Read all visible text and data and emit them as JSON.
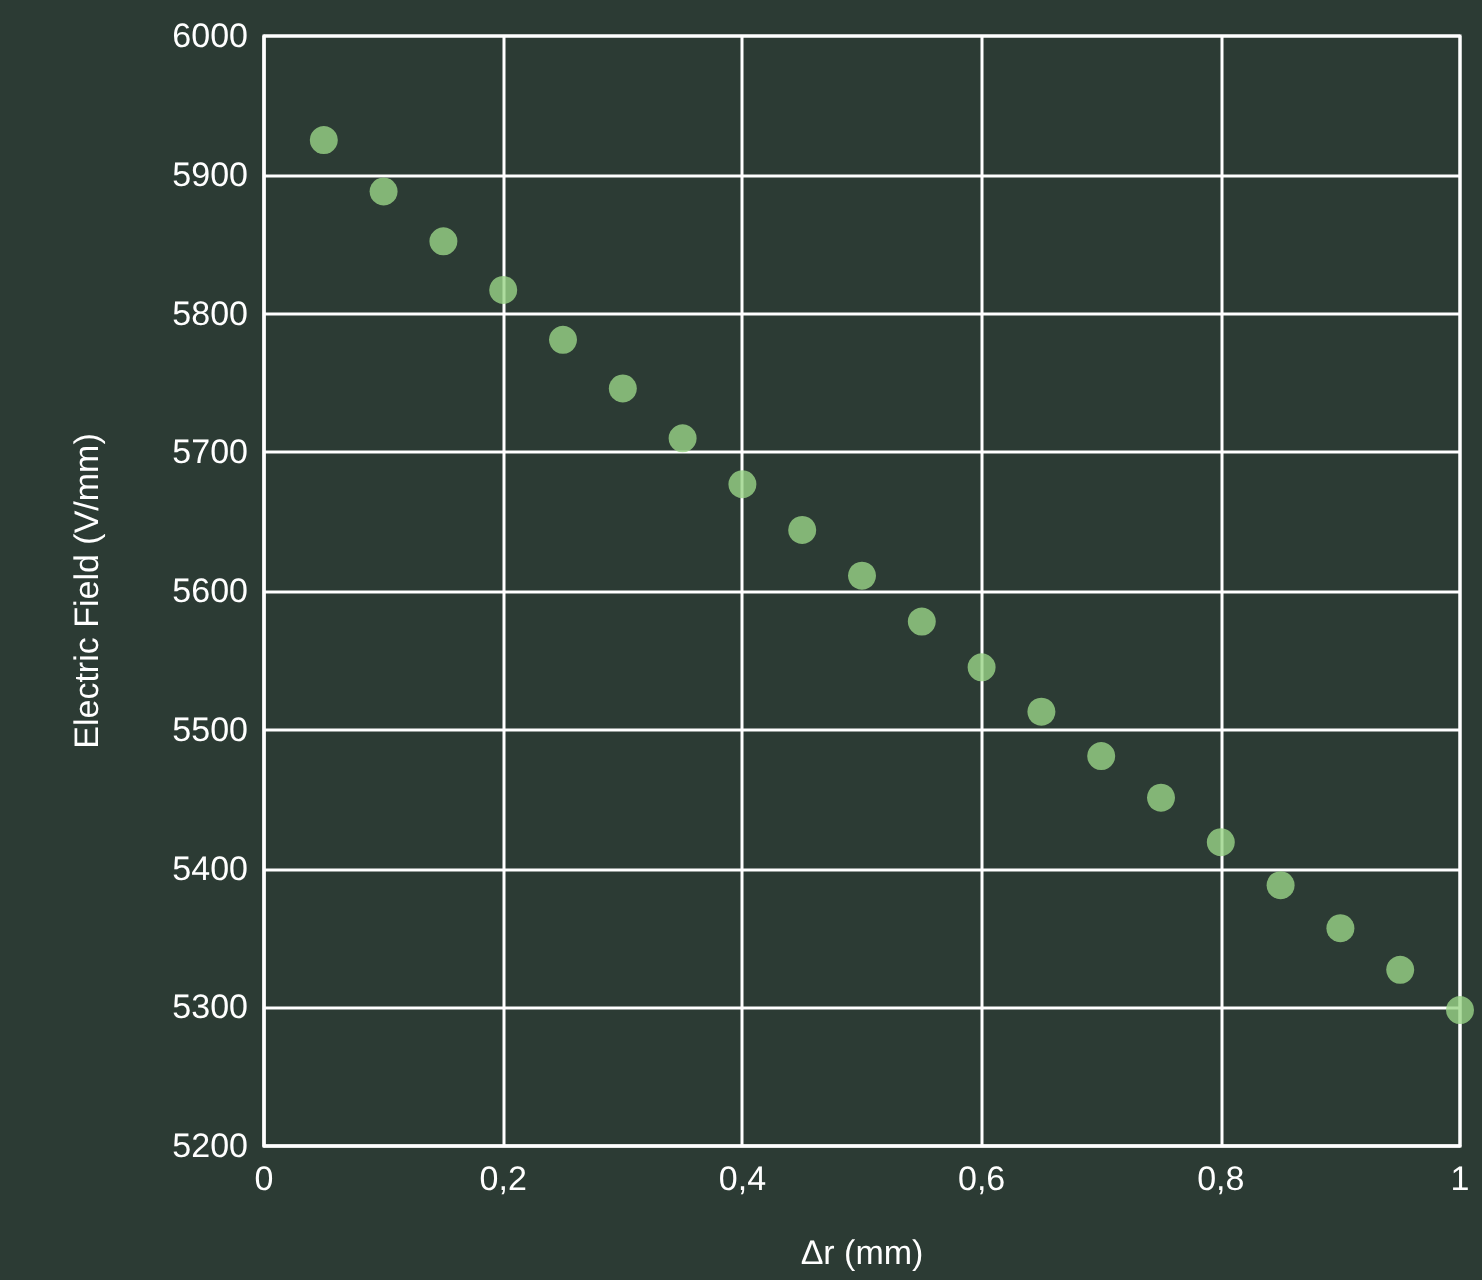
{
  "chart_data": {
    "type": "scatter",
    "xlabel": "Δr (mm)",
    "ylabel": "Electric Field (V/mm)",
    "x": [
      0.05,
      0.1,
      0.15,
      0.2,
      0.25,
      0.3,
      0.35,
      0.4,
      0.45,
      0.5,
      0.55,
      0.6,
      0.65,
      0.7,
      0.75,
      0.8,
      0.85,
      0.9,
      0.95,
      1.0
    ],
    "series": [
      {
        "color": "#9ad487",
        "values": [
          5925,
          5888,
          5852,
          5817,
          5781,
          5746,
          5710,
          5677,
          5644,
          5611,
          5578,
          5545,
          5513,
          5481,
          5451,
          5419,
          5388,
          5357,
          5327,
          5298
        ]
      }
    ],
    "xlim": [
      0,
      1
    ],
    "xticks": [
      0,
      {
        "value": 0.2,
        "label": "0,2"
      },
      {
        "value": 0.4,
        "label": "0,4"
      },
      {
        "value": 0.6,
        "label": "0,6"
      },
      {
        "value": 0.8,
        "label": "0,8"
      },
      1
    ],
    "ylim": [
      5200,
      6000
    ],
    "yticks": [
      5200,
      5300,
      5400,
      5500,
      5600,
      5700,
      5800,
      5900,
      6000
    ],
    "grid": true,
    "marker": "circle"
  }
}
